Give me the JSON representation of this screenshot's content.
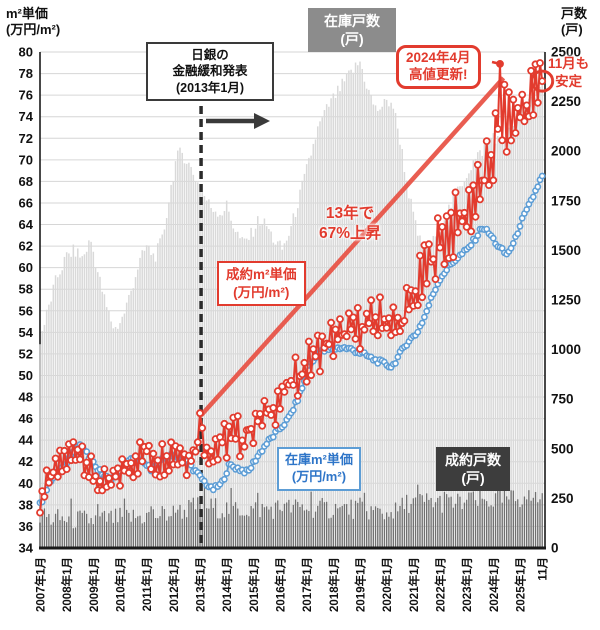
{
  "colors": {
    "red": "#e23b2e",
    "blue": "#5d9dd5",
    "light_gray": "#d9d9d9",
    "dark_gray": "#6f6f6f",
    "grid": "#d6d6d6",
    "axis": "#1a1a1a",
    "trend": "#e85548",
    "box_gray": "#8c8c8c",
    "box_dark": "#3d3d3d"
  },
  "axes": {
    "left_title": {
      "line1": "m²単価",
      "line2": "(万円/m²)"
    },
    "right_title": {
      "line1": "戸数",
      "line2": "(戸)"
    },
    "left_ticks": [
      "80",
      "78",
      "76",
      "74",
      "72",
      "70",
      "68",
      "66",
      "64",
      "62",
      "60",
      "58",
      "56",
      "54",
      "52",
      "50",
      "48",
      "46",
      "44",
      "42",
      "40",
      "38",
      "36",
      "34"
    ],
    "right_ticks": [
      "2500",
      "2250",
      "2000",
      "1750",
      "1500",
      "1250",
      "1000",
      "750",
      "500",
      "250",
      "0"
    ]
  },
  "annotations": {
    "boj": {
      "line1": "日銀の",
      "line2": "金融緩和発表",
      "line3": "(2013年1月)"
    },
    "inventory_count": {
      "line1": "在庫戸数",
      "line2": "(戸)"
    },
    "record_high": {
      "line1": "2024年4月",
      "line2": "高値更新!"
    },
    "nov_stable": {
      "line1": "11月も",
      "line2": "安定"
    },
    "rise_13y": {
      "line1": "13年で",
      "line2": "67%上昇"
    },
    "contract_price": {
      "line1": "成約m²単価",
      "line2": "(万円/m²)"
    },
    "inventory_price": {
      "line1": "在庫m²単価",
      "line2": "(万円/m²)"
    },
    "contract_count": {
      "line1": "成約戸数",
      "line2": "(戸)"
    }
  },
  "chart_data": {
    "type": "combo (monthly bars + lines)",
    "x_domain": [
      2007.0,
      2025.92
    ],
    "months_start": "2007-01",
    "months_end": "2025-11",
    "month_count": 227,
    "y_left": {
      "label": "m²単価(万円/m²)",
      "min": 34,
      "max": 80,
      "tick_step": 2
    },
    "y_right": {
      "label": "戸数(戸)",
      "min": 0,
      "max": 2500,
      "tick_step": 250
    },
    "x_ticks": [
      {
        "label": "2007年1月",
        "t": 2007
      },
      {
        "label": "2008年1月",
        "t": 2008
      },
      {
        "label": "2009年1月",
        "t": 2009
      },
      {
        "label": "2010年1月",
        "t": 2010
      },
      {
        "label": "2011年1月",
        "t": 2011
      },
      {
        "label": "2012年1月",
        "t": 2012
      },
      {
        "label": "2013年1月",
        "t": 2013
      },
      {
        "label": "2014年1月",
        "t": 2014
      },
      {
        "label": "2015年1月",
        "t": 2015
      },
      {
        "label": "2016年1月",
        "t": 2016
      },
      {
        "label": "2017年1月",
        "t": 2017
      },
      {
        "label": "2018年1月",
        "t": 2018
      },
      {
        "label": "2019年1月",
        "t": 2019
      },
      {
        "label": "2020年1月",
        "t": 2020
      },
      {
        "label": "2021年1月",
        "t": 2021
      },
      {
        "label": "2022年1月",
        "t": 2022
      },
      {
        "label": "2023年1月",
        "t": 2023
      },
      {
        "label": "2024年1月",
        "t": 2024
      },
      {
        "label": "2025年1月",
        "t": 2025
      },
      {
        "label": "11月",
        "t": 2025.8333
      }
    ],
    "series": [
      {
        "key": "inventory_units",
        "name": "在庫戸数(戸)",
        "type": "bar",
        "axis": "right",
        "color": "#d9d9d9",
        "seed": 201,
        "jitter": 35,
        "keypoints": [
          [
            2007.0,
            1050
          ],
          [
            2007.3,
            1200
          ],
          [
            2007.6,
            1350
          ],
          [
            2008.0,
            1470
          ],
          [
            2008.3,
            1500
          ],
          [
            2008.6,
            1460
          ],
          [
            2008.9,
            1555
          ],
          [
            2009.2,
            1370
          ],
          [
            2009.5,
            1210
          ],
          [
            2009.8,
            1100
          ],
          [
            2010.1,
            1160
          ],
          [
            2010.4,
            1290
          ],
          [
            2010.7,
            1430
          ],
          [
            2011.0,
            1520
          ],
          [
            2011.3,
            1465
          ],
          [
            2011.6,
            1560
          ],
          [
            2011.9,
            1810
          ],
          [
            2012.1,
            1955
          ],
          [
            2012.3,
            2000
          ],
          [
            2012.6,
            1930
          ],
          [
            2012.9,
            1845
          ],
          [
            2013.1,
            1790
          ],
          [
            2013.4,
            1720
          ],
          [
            2013.8,
            1685
          ],
          [
            2014.0,
            1725
          ],
          [
            2014.3,
            1610
          ],
          [
            2014.6,
            1535
          ],
          [
            2014.9,
            1575
          ],
          [
            2015.2,
            1655
          ],
          [
            2015.5,
            1625
          ],
          [
            2015.8,
            1545
          ],
          [
            2016.1,
            1505
          ],
          [
            2016.4,
            1605
          ],
          [
            2016.7,
            1755
          ],
          [
            2017.0,
            1905
          ],
          [
            2017.4,
            2105
          ],
          [
            2017.8,
            2225
          ],
          [
            2018.2,
            2305
          ],
          [
            2018.6,
            2385
          ],
          [
            2019.0,
            2450
          ],
          [
            2019.3,
            2310
          ],
          [
            2019.6,
            2205
          ],
          [
            2019.9,
            2235
          ],
          [
            2020.2,
            2255
          ],
          [
            2020.5,
            2060
          ],
          [
            2020.8,
            1810
          ],
          [
            2021.1,
            1610
          ],
          [
            2021.4,
            1485
          ],
          [
            2021.7,
            1530
          ],
          [
            2022.0,
            1625
          ],
          [
            2022.4,
            1725
          ],
          [
            2022.8,
            1835
          ],
          [
            2023.2,
            1935
          ],
          [
            2023.6,
            2005
          ],
          [
            2024.0,
            2085
          ],
          [
            2024.3,
            2035
          ],
          [
            2024.6,
            2105
          ],
          [
            2025.0,
            2205
          ],
          [
            2025.4,
            2285
          ],
          [
            2025.9,
            2330
          ]
        ]
      },
      {
        "key": "contract_units",
        "name": "成約戸数(戸)",
        "type": "bar",
        "axis": "right",
        "color": "#6f6f6f",
        "seed": 301,
        "jitter": 55,
        "march_boost": 55,
        "keypoints": [
          [
            2007.0,
            150
          ],
          [
            2008.0,
            145
          ],
          [
            2009.0,
            140
          ],
          [
            2010.0,
            150
          ],
          [
            2011.0,
            160
          ],
          [
            2012.0,
            175
          ],
          [
            2013.0,
            215
          ],
          [
            2014.0,
            195
          ],
          [
            2015.0,
            195
          ],
          [
            2016.0,
            200
          ],
          [
            2017.0,
            205
          ],
          [
            2018.0,
            195
          ],
          [
            2019.0,
            200
          ],
          [
            2020.2,
            165
          ],
          [
            2020.8,
            230
          ],
          [
            2021.5,
            235
          ],
          [
            2022.5,
            225
          ],
          [
            2023.5,
            235
          ],
          [
            2024.5,
            245
          ],
          [
            2025.9,
            255
          ]
        ]
      },
      {
        "key": "inventory_price",
        "name": "在庫m²単価(万円/m²)",
        "type": "line",
        "axis": "left",
        "color": "#5d9dd5",
        "seed": 101,
        "volatility": 0.35,
        "zigzag": false,
        "overrides": {
          "226": 68.5
        },
        "keypoints": [
          [
            2007.0,
            38.0
          ],
          [
            2007.4,
            40.2
          ],
          [
            2007.8,
            41.3
          ],
          [
            2008.2,
            42.8
          ],
          [
            2008.45,
            43.5
          ],
          [
            2008.8,
            42.6
          ],
          [
            2009.2,
            41.2
          ],
          [
            2009.6,
            40.3
          ],
          [
            2010.0,
            41.0
          ],
          [
            2010.4,
            42.2
          ],
          [
            2010.8,
            42.0
          ],
          [
            2011.2,
            41.3
          ],
          [
            2011.8,
            42.6
          ],
          [
            2012.2,
            42.3
          ],
          [
            2012.6,
            41.8
          ],
          [
            2013.0,
            40.6
          ],
          [
            2013.45,
            39.4
          ],
          [
            2013.8,
            39.9
          ],
          [
            2014.1,
            41.7
          ],
          [
            2014.5,
            41.3
          ],
          [
            2014.8,
            41.0
          ],
          [
            2015.1,
            42.3
          ],
          [
            2015.5,
            43.7
          ],
          [
            2015.9,
            44.8
          ],
          [
            2016.3,
            45.9
          ],
          [
            2016.6,
            47.4
          ],
          [
            2016.9,
            49.3
          ],
          [
            2017.15,
            51.0
          ],
          [
            2017.5,
            52.2
          ],
          [
            2017.9,
            52.4
          ],
          [
            2018.3,
            52.6
          ],
          [
            2018.7,
            52.4
          ],
          [
            2019.1,
            52.0
          ],
          [
            2019.5,
            51.5
          ],
          [
            2019.9,
            51.1
          ],
          [
            2020.2,
            50.8
          ],
          [
            2020.5,
            52.0
          ],
          [
            2020.8,
            53.2
          ],
          [
            2021.1,
            53.8
          ],
          [
            2021.4,
            55.3
          ],
          [
            2021.7,
            57.3
          ],
          [
            2022.0,
            59.0
          ],
          [
            2022.3,
            60.0
          ],
          [
            2022.6,
            60.8
          ],
          [
            2023.0,
            61.6
          ],
          [
            2023.3,
            62.6
          ],
          [
            2023.6,
            63.8
          ],
          [
            2023.9,
            63.0
          ],
          [
            2024.2,
            61.9
          ],
          [
            2024.5,
            61.2
          ],
          [
            2024.8,
            62.4
          ],
          [
            2025.0,
            64.0
          ],
          [
            2025.3,
            65.5
          ],
          [
            2025.6,
            67.2
          ],
          [
            2025.83,
            68.5
          ]
        ]
      },
      {
        "key": "contract_price",
        "name": "成約m²単価(万円/m²)",
        "type": "line",
        "axis": "left",
        "color": "#e23b2e",
        "seed": 7,
        "zigzag": true,
        "volatility": [
          [
            2007,
            1.3
          ],
          [
            2012,
            1.5
          ],
          [
            2014,
            1.8
          ],
          [
            2019,
            1.8
          ],
          [
            2021,
            2.3
          ],
          [
            2022.5,
            2.7
          ],
          [
            2026,
            2.8
          ]
        ],
        "overrides": {
          "72": 46.5,
          "207": 78.9,
          "226": 77.3
        },
        "keypoints": [
          [
            2007.0,
            38.5
          ],
          [
            2007.4,
            40.5
          ],
          [
            2007.8,
            41.8
          ],
          [
            2008.2,
            42.8
          ],
          [
            2008.5,
            43.2
          ],
          [
            2009.0,
            40.5
          ],
          [
            2009.5,
            39.6
          ],
          [
            2010.0,
            41.0
          ],
          [
            2010.5,
            42.0
          ],
          [
            2011.0,
            43.0
          ],
          [
            2011.4,
            42.0
          ],
          [
            2012.0,
            43.0
          ],
          [
            2012.6,
            42.4
          ],
          [
            2013.0,
            44.0
          ],
          [
            2013.4,
            43.0
          ],
          [
            2013.8,
            43.6
          ],
          [
            2014.2,
            44.6
          ],
          [
            2014.6,
            44.1
          ],
          [
            2015.0,
            45.4
          ],
          [
            2015.5,
            46.4
          ],
          [
            2016.0,
            47.9
          ],
          [
            2016.5,
            49.4
          ],
          [
            2017.0,
            51.0
          ],
          [
            2017.5,
            52.4
          ],
          [
            2018.0,
            53.4
          ],
          [
            2018.5,
            54.0
          ],
          [
            2019.0,
            54.5
          ],
          [
            2019.5,
            55.0
          ],
          [
            2020.0,
            55.4
          ],
          [
            2020.4,
            54.2
          ],
          [
            2020.8,
            56.2
          ],
          [
            2021.2,
            58.2
          ],
          [
            2021.6,
            60.4
          ],
          [
            2022.0,
            62.4
          ],
          [
            2022.4,
            63.5
          ],
          [
            2022.8,
            64.5
          ],
          [
            2023.2,
            66.0
          ],
          [
            2023.6,
            67.6
          ],
          [
            2024.0,
            70.5
          ],
          [
            2024.25,
            74.5
          ],
          [
            2024.5,
            73.5
          ],
          [
            2024.8,
            73.8
          ],
          [
            2025.1,
            74.8
          ],
          [
            2025.4,
            75.6
          ],
          [
            2025.83,
            77.0
          ]
        ]
      }
    ],
    "trend_line": {
      "from": [
        2013.04,
        46.3
      ],
      "to": [
        2024.38,
        77.6
      ],
      "label": "13年で67%上昇"
    },
    "event_line": {
      "t": 2013.04,
      "label": "日銀の金融緩和発表(2013年1月)"
    },
    "callout_point": {
      "t": 2024.25,
      "v": 78.9,
      "label": "2024年4月高値更新!"
    },
    "highlight_point": {
      "t": 2025.8333,
      "v": 77.3,
      "label": "11月も安定"
    }
  }
}
